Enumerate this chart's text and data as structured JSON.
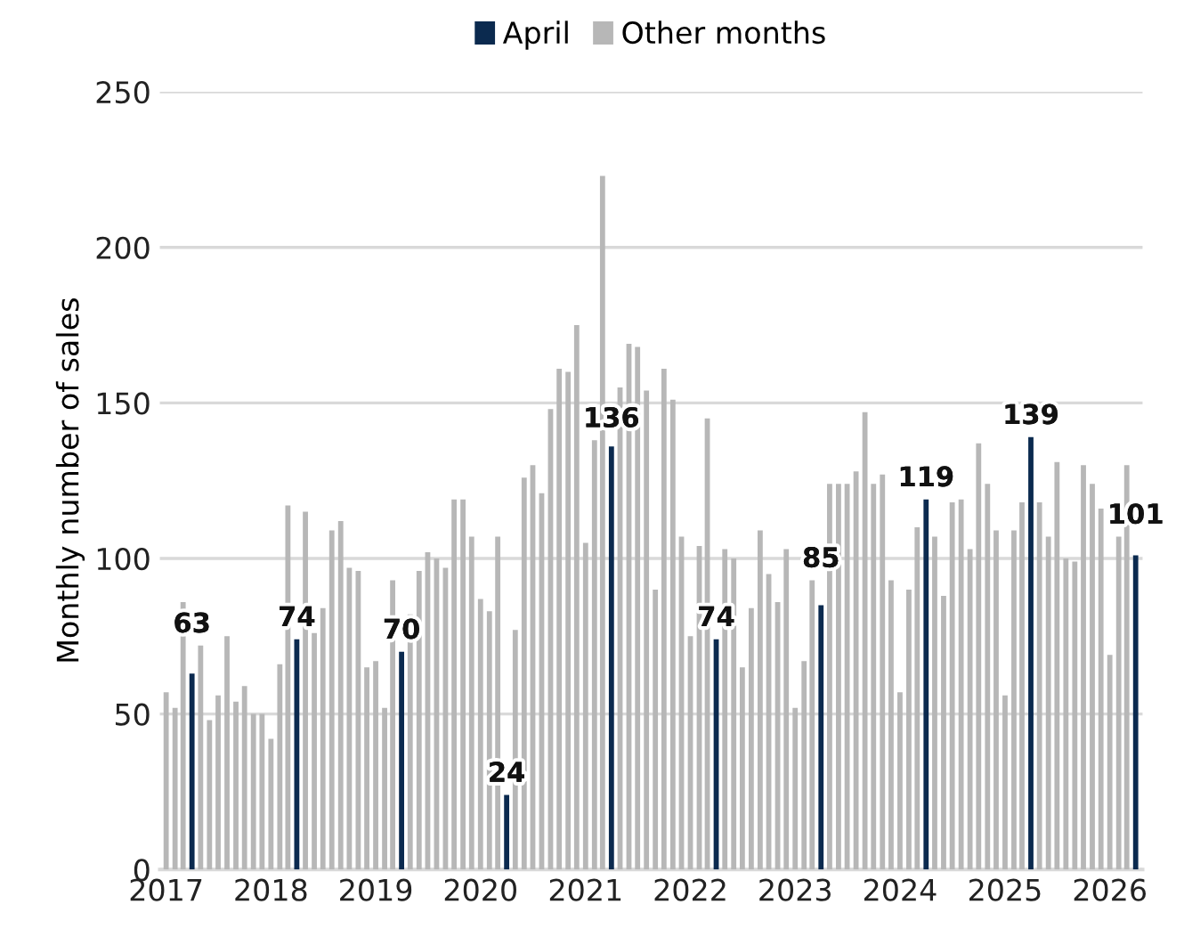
{
  "chart_data": {
    "type": "bar",
    "ylabel": "Monthly number of sales",
    "x": [
      "2017-01",
      "2017-02",
      "2017-03",
      "2017-04",
      "2017-05",
      "2017-06",
      "2017-07",
      "2017-08",
      "2017-09",
      "2017-10",
      "2017-11",
      "2017-12",
      "2018-01",
      "2018-02",
      "2018-03",
      "2018-04",
      "2018-05",
      "2018-06",
      "2018-07",
      "2018-08",
      "2018-09",
      "2018-10",
      "2018-11",
      "2018-12",
      "2019-01",
      "2019-02",
      "2019-03",
      "2019-04",
      "2019-05",
      "2019-06",
      "2019-07",
      "2019-08",
      "2019-09",
      "2019-10",
      "2019-11",
      "2019-12",
      "2020-01",
      "2020-02",
      "2020-03",
      "2020-04",
      "2020-05",
      "2020-06",
      "2020-07",
      "2020-08",
      "2020-09",
      "2020-10",
      "2020-11",
      "2020-12",
      "2021-01",
      "2021-02",
      "2021-03",
      "2021-04",
      "2021-05",
      "2021-06",
      "2021-07",
      "2021-08",
      "2021-09",
      "2021-10",
      "2021-11",
      "2021-12",
      "2022-01",
      "2022-02",
      "2022-03",
      "2022-04",
      "2022-05",
      "2022-06",
      "2022-07",
      "2022-08",
      "2022-09",
      "2022-10",
      "2022-11",
      "2022-12",
      "2023-01",
      "2023-02",
      "2023-03",
      "2023-04",
      "2023-05",
      "2023-06",
      "2023-07",
      "2023-08",
      "2023-09",
      "2023-10",
      "2023-11",
      "2023-12",
      "2024-01",
      "2024-02",
      "2024-03",
      "2024-04",
      "2024-05",
      "2024-06",
      "2024-07",
      "2024-08",
      "2024-09",
      "2024-10",
      "2024-11",
      "2024-12",
      "2025-01",
      "2025-02",
      "2025-03",
      "2025-04",
      "2025-05",
      "2025-06",
      "2025-07",
      "2025-08",
      "2025-09",
      "2025-10",
      "2025-11",
      "2025-12",
      "2026-01",
      "2026-02",
      "2026-03",
      "2026-04"
    ],
    "series": [
      {
        "name": "April",
        "color": "#0b2a4f",
        "values": [
          null,
          null,
          null,
          63,
          null,
          null,
          null,
          null,
          null,
          null,
          null,
          null,
          null,
          null,
          null,
          74,
          null,
          null,
          null,
          null,
          null,
          null,
          null,
          null,
          null,
          null,
          null,
          70,
          null,
          null,
          null,
          null,
          null,
          null,
          null,
          null,
          null,
          null,
          null,
          24,
          null,
          null,
          null,
          null,
          null,
          null,
          null,
          null,
          null,
          null,
          null,
          136,
          null,
          null,
          null,
          null,
          null,
          null,
          null,
          null,
          null,
          null,
          null,
          74,
          null,
          null,
          null,
          null,
          null,
          null,
          null,
          null,
          null,
          null,
          null,
          85,
          null,
          null,
          null,
          null,
          null,
          null,
          null,
          null,
          null,
          null,
          null,
          119,
          null,
          null,
          null,
          null,
          null,
          null,
          null,
          null,
          null,
          null,
          null,
          139,
          null,
          null,
          null,
          null,
          null,
          null,
          null,
          null,
          null,
          null,
          null,
          101
        ],
        "value_labels": [
          null,
          null,
          null,
          "63",
          null,
          null,
          null,
          null,
          null,
          null,
          null,
          null,
          null,
          null,
          null,
          "74",
          null,
          null,
          null,
          null,
          null,
          null,
          null,
          null,
          null,
          null,
          null,
          "70",
          null,
          null,
          null,
          null,
          null,
          null,
          null,
          null,
          null,
          null,
          null,
          "24",
          null,
          null,
          null,
          null,
          null,
          null,
          null,
          null,
          null,
          null,
          null,
          "136",
          null,
          null,
          null,
          null,
          null,
          null,
          null,
          null,
          null,
          null,
          null,
          "74",
          null,
          null,
          null,
          null,
          null,
          null,
          null,
          null,
          null,
          null,
          null,
          "85",
          null,
          null,
          null,
          null,
          null,
          null,
          null,
          null,
          null,
          null,
          null,
          "119",
          null,
          null,
          null,
          null,
          null,
          null,
          null,
          null,
          null,
          null,
          null,
          "139",
          null,
          null,
          null,
          null,
          null,
          null,
          null,
          null,
          null,
          null,
          null,
          "101"
        ]
      },
      {
        "name": "Other months",
        "color": "#b7b7b7",
        "values": [
          57,
          52,
          86,
          null,
          72,
          48,
          56,
          75,
          54,
          59,
          50,
          50,
          42,
          66,
          117,
          null,
          115,
          76,
          84,
          109,
          112,
          97,
          96,
          65,
          67,
          52,
          93,
          null,
          82,
          96,
          102,
          100,
          97,
          119,
          119,
          107,
          87,
          83,
          107,
          null,
          77,
          126,
          130,
          121,
          148,
          161,
          160,
          175,
          105,
          138,
          223,
          null,
          155,
          169,
          168,
          154,
          90,
          161,
          151,
          107,
          75,
          104,
          145,
          null,
          103,
          100,
          65,
          84,
          109,
          95,
          86,
          103,
          52,
          67,
          93,
          null,
          124,
          124,
          124,
          128,
          147,
          124,
          127,
          93,
          57,
          90,
          110,
          null,
          107,
          88,
          118,
          119,
          103,
          137,
          124,
          109,
          56,
          109,
          118,
          null,
          118,
          107,
          131,
          100,
          99,
          130,
          124,
          116,
          69,
          107,
          130,
          null
        ]
      }
    ],
    "xlim": [
      "2016-12-10",
      "2026-04-25"
    ],
    "xticks": [
      {
        "value": "2017-01",
        "label": "2017"
      },
      {
        "value": "2018-01",
        "label": "2018"
      },
      {
        "value": "2019-01",
        "label": "2019"
      },
      {
        "value": "2020-01",
        "label": "2020"
      },
      {
        "value": "2021-01",
        "label": "2021"
      },
      {
        "value": "2022-01",
        "label": "2022"
      },
      {
        "value": "2023-01",
        "label": "2023"
      },
      {
        "value": "2024-01",
        "label": "2024"
      },
      {
        "value": "2025-01",
        "label": "2025"
      },
      {
        "value": "2026-01",
        "label": "2026"
      }
    ],
    "ylim": [
      0,
      250
    ],
    "yticks": [
      0,
      50,
      100,
      150,
      200,
      250
    ],
    "grid": "y",
    "legend": "top"
  }
}
